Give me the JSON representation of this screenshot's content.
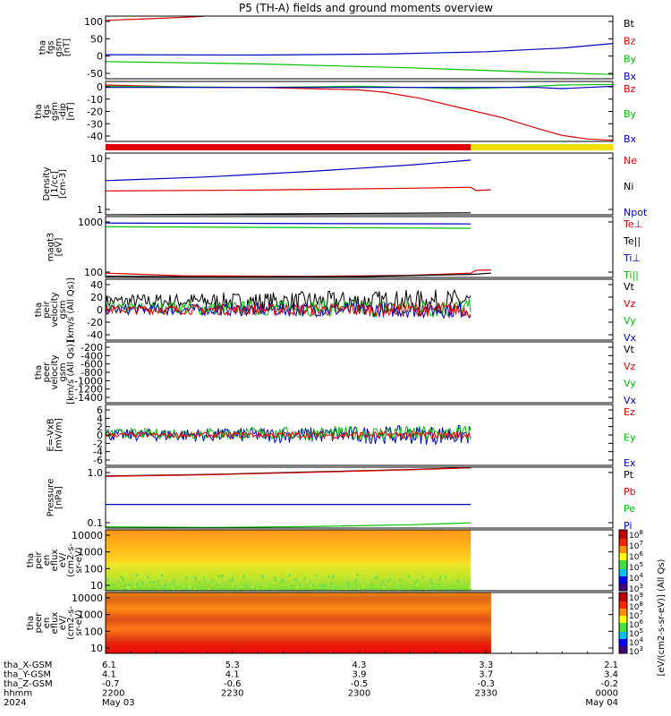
{
  "title": "P5 (TH-A) fields and ground moments overview",
  "colors": {
    "black": "#000000",
    "red": "#e00000",
    "green": "#00c000",
    "blue": "#0000c0",
    "yellow": "#f0e000"
  },
  "chart_data": [
    {
      "type": "line",
      "ylabel": [
        "tha",
        "fgs",
        "gsm",
        "[nT]"
      ],
      "yticks": [
        "100",
        "50",
        "0",
        "-50"
      ],
      "ylim": [
        -85,
        105
      ],
      "legend": [
        {
          "text": "Bt",
          "color": "black"
        },
        {
          "text": "Bz",
          "color": "red"
        },
        {
          "text": "By",
          "color": "green"
        },
        {
          "text": "Bx",
          "color": "blue"
        }
      ],
      "series": [
        {
          "name": "Bz",
          "color": "red",
          "x": [
            0,
            0.1,
            0.18,
            0.24
          ],
          "y": [
            92,
            98,
            103,
            110
          ]
        },
        {
          "name": "By",
          "color": "green",
          "x": [
            0,
            0.3,
            0.6,
            0.85,
            1.0
          ],
          "y": [
            -33,
            -40,
            -52,
            -65,
            -72
          ]
        },
        {
          "name": "Bx",
          "color": "blue",
          "x": [
            0,
            0.3,
            0.55,
            0.75,
            0.9,
            1.0
          ],
          "y": [
            -12,
            -13,
            -10,
            -3,
            8,
            22
          ]
        }
      ]
    },
    {
      "type": "line",
      "ylabel": [
        "tha",
        "fgs",
        "gsm",
        "-dip",
        "[nT]"
      ],
      "yticks": [
        "0",
        "-10",
        "-20",
        "-30",
        "-40"
      ],
      "ylim": [
        -48,
        2
      ],
      "legend": [
        {
          "text": "Bz",
          "color": "red"
        },
        {
          "text": "By",
          "color": "green"
        },
        {
          "text": "Bx",
          "color": "blue"
        }
      ],
      "series": [
        {
          "name": "Bz",
          "color": "red",
          "x": [
            0,
            0.1,
            0.2,
            0.3,
            0.4,
            0.5,
            0.55,
            0.62,
            0.7,
            0.78,
            0.85,
            0.9,
            0.95,
            1.0
          ],
          "y": [
            -1,
            -2,
            -3,
            -3,
            -4,
            -5,
            -7,
            -12,
            -20,
            -28,
            -37,
            -43,
            -46,
            -47
          ]
        },
        {
          "name": "By",
          "color": "green",
          "x": [
            0,
            0.3,
            0.5,
            0.6,
            0.7,
            0.8,
            0.9,
            1.0
          ],
          "y": [
            -2,
            -3,
            -2,
            -3,
            -4,
            -3,
            -1,
            -0.5
          ]
        },
        {
          "name": "Bx",
          "color": "blue",
          "x": [
            0,
            0.3,
            0.5,
            0.6,
            0.7,
            0.8,
            0.85,
            0.9,
            0.95,
            1.0
          ],
          "y": [
            -3,
            -3,
            -3,
            -3,
            -3,
            -3,
            -3,
            -4,
            -3,
            -2
          ]
        }
      ]
    },
    {
      "type": "line",
      "ylabel": [
        "Density",
        "[1/cc]",
        "[cm-3]"
      ],
      "yticks": [
        "10",
        "1"
      ],
      "yscale": "log",
      "ylim": [
        0.7,
        45
      ],
      "legend": [
        {
          "text": "Ne",
          "color": "red"
        },
        {
          "text": "Ni",
          "color": "black"
        },
        {
          "text": "Npot",
          "color": "blue"
        }
      ],
      "series": [
        {
          "name": "Npot",
          "color": "blue",
          "x": [
            0,
            0.2,
            0.4,
            0.6,
            0.72
          ],
          "y": [
            7,
            9,
            13,
            20,
            28
          ]
        },
        {
          "name": "Ne",
          "color": "red",
          "x": [
            0,
            0.3,
            0.6,
            0.72,
            0.73,
            0.76
          ],
          "y": [
            3.5,
            3.7,
            4.2,
            4.5,
            3.6,
            3.8
          ]
        },
        {
          "name": "Ni",
          "color": "black",
          "x": [
            0,
            0.72
          ],
          "y": [
            0.7,
            0.8
          ]
        }
      ]
    },
    {
      "type": "line",
      "ylabel": [
        "magt3",
        "[eV]"
      ],
      "yticks": [
        "1000",
        "100"
      ],
      "yscale": "log",
      "ylim": [
        50,
        9000
      ],
      "legend": [
        {
          "text": "Te⊥",
          "color": "red"
        },
        {
          "text": "Te||",
          "color": "black"
        },
        {
          "text": "Ti⊥",
          "color": "blue"
        },
        {
          "text": "Ti||",
          "color": "green"
        }
      ],
      "series": [
        {
          "name": "Ti⊥",
          "color": "blue",
          "x": [
            0,
            0.72
          ],
          "y": [
            5200,
            4800
          ]
        },
        {
          "name": "Ti||",
          "color": "green",
          "x": [
            0,
            0.72
          ],
          "y": [
            3800,
            3300
          ]
        },
        {
          "name": "Te⊥",
          "color": "red",
          "x": [
            0,
            0.15,
            0.4,
            0.6,
            0.72,
            0.73,
            0.76
          ],
          "y": [
            72,
            58,
            55,
            60,
            72,
            92,
            95
          ]
        },
        {
          "name": "Te||",
          "color": "black",
          "x": [
            0,
            0.2,
            0.5,
            0.72,
            0.76
          ],
          "y": [
            56,
            52,
            54,
            65,
            72
          ]
        }
      ]
    },
    {
      "type": "line",
      "ylabel": [
        "tha",
        "peir",
        "velocity",
        "gsm",
        "[km/s (All Qs)]"
      ],
      "yticks": [
        "40",
        "20",
        "0",
        "-20",
        "-40"
      ],
      "ylim": [
        -44,
        44
      ],
      "legend": [
        {
          "text": "Vt",
          "color": "black"
        },
        {
          "text": "Vz",
          "color": "red"
        },
        {
          "text": "Vy",
          "color": "green"
        },
        {
          "text": "Vx",
          "color": "blue"
        }
      ],
      "noise": {
        "xmax": 0.72,
        "series": [
          {
            "color": "black",
            "center": 12,
            "amp": 10
          },
          {
            "color": "green",
            "center": 2,
            "amp": 8
          },
          {
            "color": "blue",
            "center": 0,
            "amp": 7
          },
          {
            "color": "red",
            "center": 0,
            "amp": 6
          }
        ]
      }
    },
    {
      "type": "line",
      "ylabel": [
        "tha",
        "peer",
        "velocity",
        "gsm",
        "[km/s (All Qs)]"
      ],
      "yticks": [
        "-200",
        "-400",
        "-600",
        "-800",
        "-1000",
        "-1200",
        "-1400"
      ],
      "ylim": [
        -1500,
        -150
      ],
      "legend": [
        {
          "text": "Vt",
          "color": "black"
        },
        {
          "text": "Vz",
          "color": "red"
        },
        {
          "text": "Vy",
          "color": "green"
        },
        {
          "text": "Vx",
          "color": "blue"
        }
      ],
      "series": []
    },
    {
      "type": "line",
      "ylabel": [
        "E=-VxB",
        "[mV/m]"
      ],
      "yticks": [
        "6",
        "4",
        "2",
        "0",
        "-2",
        "-4",
        "-6"
      ],
      "ylim": [
        -6.5,
        6.5
      ],
      "legend": [
        {
          "text": "Ez",
          "color": "red"
        },
        {
          "text": "Ey",
          "color": "green"
        },
        {
          "text": "Ex",
          "color": "blue"
        }
      ],
      "noise": {
        "xmax": 0.72,
        "series": [
          {
            "color": "blue",
            "center": 0,
            "amp": 1.2
          },
          {
            "color": "green",
            "center": 0.3,
            "amp": 1.0
          },
          {
            "color": "red",
            "center": 0,
            "amp": 0.5
          }
        ]
      }
    },
    {
      "type": "line",
      "ylabel": [
        "Pressure",
        "[nPa]"
      ],
      "yticks": [
        "1.0",
        "0.1"
      ],
      "yscale": "log",
      "ylim": [
        0.05,
        6
      ],
      "legend": [
        {
          "text": "Pt",
          "color": "black"
        },
        {
          "text": "Pb",
          "color": "red"
        },
        {
          "text": "Pe",
          "color": "green"
        },
        {
          "text": "Pi",
          "color": "blue"
        }
      ],
      "series": [
        {
          "name": "Pt",
          "color": "black",
          "x": [
            0,
            0.2,
            0.4,
            0.6,
            0.72
          ],
          "y": [
            3.0,
            3.4,
            4.1,
            5.0,
            5.8
          ]
        },
        {
          "name": "Pb",
          "color": "red",
          "x": [
            0,
            0.2,
            0.4,
            0.6,
            0.72
          ],
          "y": [
            2.9,
            3.3,
            4.0,
            4.9,
            5.7
          ]
        },
        {
          "name": "Pi",
          "color": "blue",
          "x": [
            0,
            0.72
          ],
          "y": [
            0.32,
            0.32
          ]
        },
        {
          "name": "Pe",
          "color": "green",
          "x": [
            0,
            0.2,
            0.4,
            0.6,
            0.72
          ],
          "y": [
            0.055,
            0.052,
            0.056,
            0.065,
            0.075
          ]
        }
      ]
    },
    {
      "type": "heatmap",
      "ylabel": [
        "tha",
        "peir",
        "en",
        "eflux",
        "eV/",
        "(cm2-s-",
        "sr-eV)"
      ],
      "yticks": [
        "10000",
        "1000",
        "100",
        "10"
      ],
      "xmax": 0.72,
      "style": "ion"
    },
    {
      "type": "heatmap",
      "ylabel": [
        "tha",
        "peer",
        "en",
        "eflux",
        "eV/",
        "(cm2-s-",
        "sr-eV)"
      ],
      "yticks": [
        "10000",
        "1000",
        "100",
        "10"
      ],
      "xmax": 0.76,
      "style": "electron"
    }
  ],
  "colorbar": {
    "label": "[eV/(cm2-s-sr-eV)] (All Qs)",
    "ticks_upper": [
      "10^8",
      "10^7",
      "10^6",
      "10^5",
      "10^4",
      "10^3"
    ],
    "ticks_lower": [
      "10^9",
      "10^8",
      "10^7",
      "10^6",
      "10^5",
      "10^4",
      "10^3"
    ]
  },
  "state_bar": {
    "red_end": 0.72,
    "colors": [
      "red",
      "yellow"
    ]
  },
  "xaxis": {
    "row_labels": [
      "tha_X-GSM",
      "tha_Y-GSM",
      "tha_Z-GSM",
      "hhmm",
      "2024"
    ],
    "columns": [
      {
        "x": 0,
        "vals": [
          "6.1",
          "4.1",
          "-0.7",
          "2200",
          "May 03"
        ]
      },
      {
        "x": 0.25,
        "vals": [
          "5.3",
          "4.1",
          "-0.6",
          "2230",
          ""
        ]
      },
      {
        "x": 0.5,
        "vals": [
          "4.3",
          "3.9",
          "-0.5",
          "2300",
          ""
        ]
      },
      {
        "x": 0.75,
        "vals": [
          "3.3",
          "3.7",
          "-0.3",
          "2330",
          ""
        ]
      },
      {
        "x": 1.0,
        "vals": [
          "2.1",
          "3.4",
          "-0.2",
          "0000",
          "May 04"
        ]
      }
    ]
  }
}
